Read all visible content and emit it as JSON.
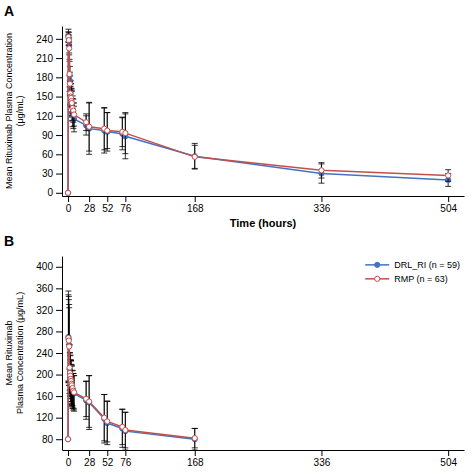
{
  "chart_data": [
    {
      "type": "line",
      "title": "A",
      "ylabel": "Mean Rituximab Plasma Concentration\n(μg/mL)",
      "xlabel": "Time (hours)",
      "xlim": [
        -8,
        525
      ],
      "xticks": [
        0,
        28,
        52,
        76,
        168,
        336,
        504
      ],
      "ylim": [
        -5,
        260
      ],
      "yticks": [
        0,
        30,
        60,
        90,
        120,
        150,
        180,
        210,
        240
      ],
      "x": [
        0,
        0.5,
        1,
        1.5,
        2,
        2.5,
        3,
        3.5,
        4,
        4.5,
        5,
        6,
        7,
        8,
        24,
        28,
        48,
        52,
        72,
        76,
        168,
        336,
        504
      ],
      "series": [
        {
          "name": "DRL_RI (n = 59)",
          "color": "#4472C4",
          "marker": "circle",
          "values": [
            0,
            245,
            240,
            230,
            183,
            175,
            160,
            155,
            145,
            140,
            135,
            125,
            120,
            115,
            105,
            100,
            97,
            95,
            92,
            88,
            57,
            30,
            20
          ],
          "errors": [
            0,
            10,
            10,
            12,
            25,
            22,
            22,
            20,
            25,
            22,
            23,
            22,
            20,
            20,
            15,
            40,
            35,
            30,
            25,
            35,
            20,
            15,
            10
          ]
        },
        {
          "name": "RMP (n = 63)",
          "color": "#C0504D",
          "marker": "open-circle",
          "values": [
            0,
            243,
            238,
            225,
            185,
            170,
            155,
            150,
            148,
            143,
            140,
            132,
            128,
            122,
            110,
            103,
            100,
            97,
            95,
            93,
            56,
            35,
            27
          ],
          "errors": [
            0,
            8,
            8,
            10,
            20,
            18,
            18,
            16,
            22,
            20,
            20,
            19,
            18,
            18,
            13,
            38,
            33,
            28,
            23,
            32,
            18,
            12,
            9
          ]
        }
      ]
    },
    {
      "type": "line",
      "title": "B",
      "ylabel": "Mean Rituximab\nPlasma Concentration (μg/mL)",
      "legend": "upper right",
      "xlim": [
        -8,
        525
      ],
      "xticks": [
        0,
        28,
        52,
        76,
        168,
        336,
        504
      ],
      "ylim": [
        60,
        420
      ],
      "yticks": [
        80,
        120,
        160,
        200,
        240,
        280,
        320,
        360,
        400
      ],
      "x": [
        0,
        0.5,
        1,
        1.5,
        2,
        2.5,
        3,
        3.5,
        4,
        4.5,
        5,
        6,
        7,
        8,
        24,
        28,
        48,
        52,
        72,
        76,
        168
      ],
      "series": [
        {
          "name": "DRL_RI (n = 59)",
          "color": "#4472C4",
          "marker": "circle",
          "values": [
            80,
            270,
            265,
            255,
            210,
            200,
            195,
            188,
            185,
            180,
            178,
            172,
            168,
            165,
            152,
            148,
            118,
            110,
            100,
            95,
            80
          ],
          "errors": [
            0,
            85,
            80,
            75,
            45,
            40,
            40,
            38,
            40,
            38,
            38,
            35,
            34,
            33,
            35,
            50,
            45,
            40,
            35,
            35,
            20
          ]
        },
        {
          "name": "RMP (n = 63)",
          "color": "#C0504D",
          "marker": "open-circle",
          "values": [
            80,
            268,
            263,
            252,
            213,
            203,
            198,
            192,
            188,
            183,
            180,
            175,
            170,
            167,
            155,
            150,
            120,
            113,
            103,
            97,
            82
          ],
          "errors": [
            0,
            80,
            76,
            72,
            42,
            38,
            38,
            36,
            38,
            36,
            36,
            33,
            32,
            31,
            33,
            48,
            43,
            38,
            33,
            33,
            18
          ]
        }
      ]
    }
  ]
}
